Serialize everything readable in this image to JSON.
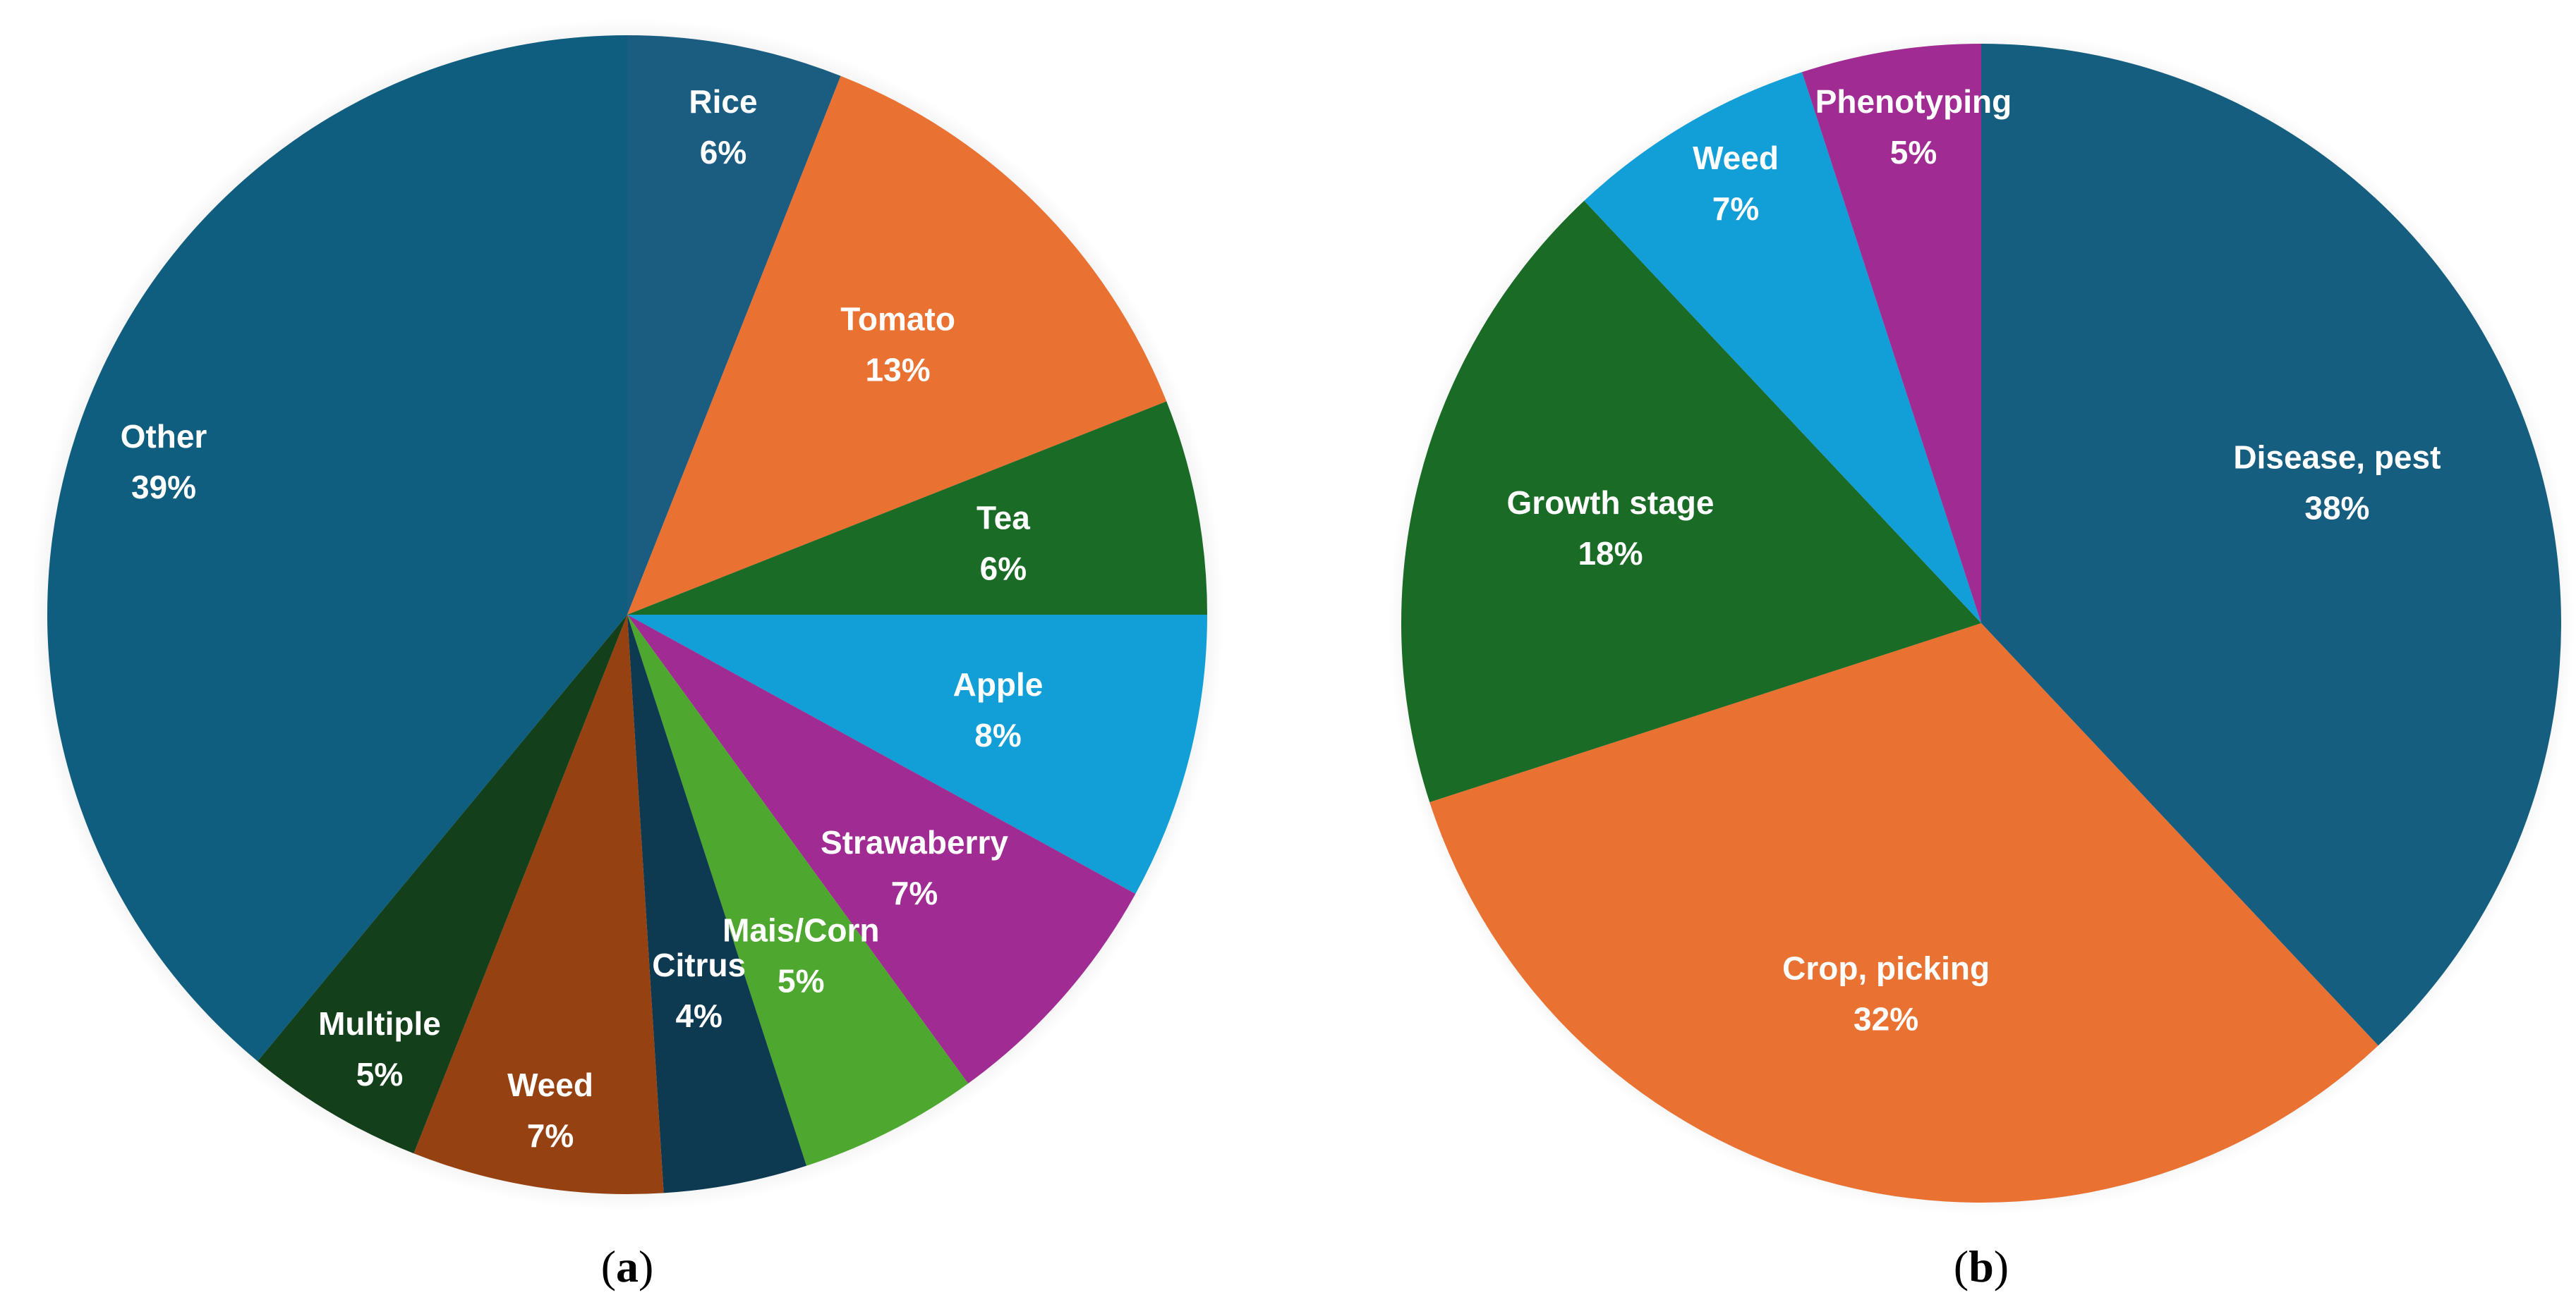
{
  "chart_data": [
    {
      "type": "pie",
      "caption": "(a)",
      "caption_letter": "a",
      "start": "12 o'clock",
      "direction": "clockwise",
      "legend": "none (labels inside slices)",
      "slices": [
        {
          "label": "Rice",
          "value": 6,
          "value_label": "6%",
          "color": "#1b5c81"
        },
        {
          "label": "Tomato",
          "value": 13,
          "value_label": "13%",
          "color": "#e97132"
        },
        {
          "label": "Tea",
          "value": 6,
          "value_label": "6%",
          "color": "#1a6b26"
        },
        {
          "label": "Apple",
          "value": 8,
          "value_label": "8%",
          "color": "#129ed6"
        },
        {
          "label": "Strawaberry",
          "value": 7,
          "value_label": "7%",
          "color": "#a02b93"
        },
        {
          "label": "Mais/Corn",
          "value": 5,
          "value_label": "5%",
          "color": "#4ea72e"
        },
        {
          "label": "Citrus",
          "value": 4,
          "value_label": "4%",
          "color": "#0e3a51"
        },
        {
          "label": "Weed",
          "value": 7,
          "value_label": "7%",
          "color": "#964112"
        },
        {
          "label": "Multiple",
          "value": 5,
          "value_label": "5%",
          "color": "#133f1a"
        },
        {
          "label": "Other",
          "value": 39,
          "value_label": "39%",
          "color": "#0f5d7f"
        }
      ]
    },
    {
      "type": "pie",
      "caption": "(b)",
      "caption_letter": "b",
      "start": "12 o'clock",
      "direction": "clockwise",
      "legend": "none (labels inside slices)",
      "slices": [
        {
          "label": "Disease, pest",
          "value": 38,
          "value_label": "38%",
          "color": "#165e80"
        },
        {
          "label": "Crop, picking",
          "value": 32,
          "value_label": "32%",
          "color": "#e97132"
        },
        {
          "label": "Growth stage",
          "value": 18,
          "value_label": "18%",
          "color": "#1a6b26"
        },
        {
          "label": "Weed",
          "value": 7,
          "value_label": "7%",
          "color": "#129ed6"
        },
        {
          "label": "Phenotyping",
          "value": 5,
          "value_label": "5%",
          "color": "#a02b93"
        }
      ]
    }
  ]
}
